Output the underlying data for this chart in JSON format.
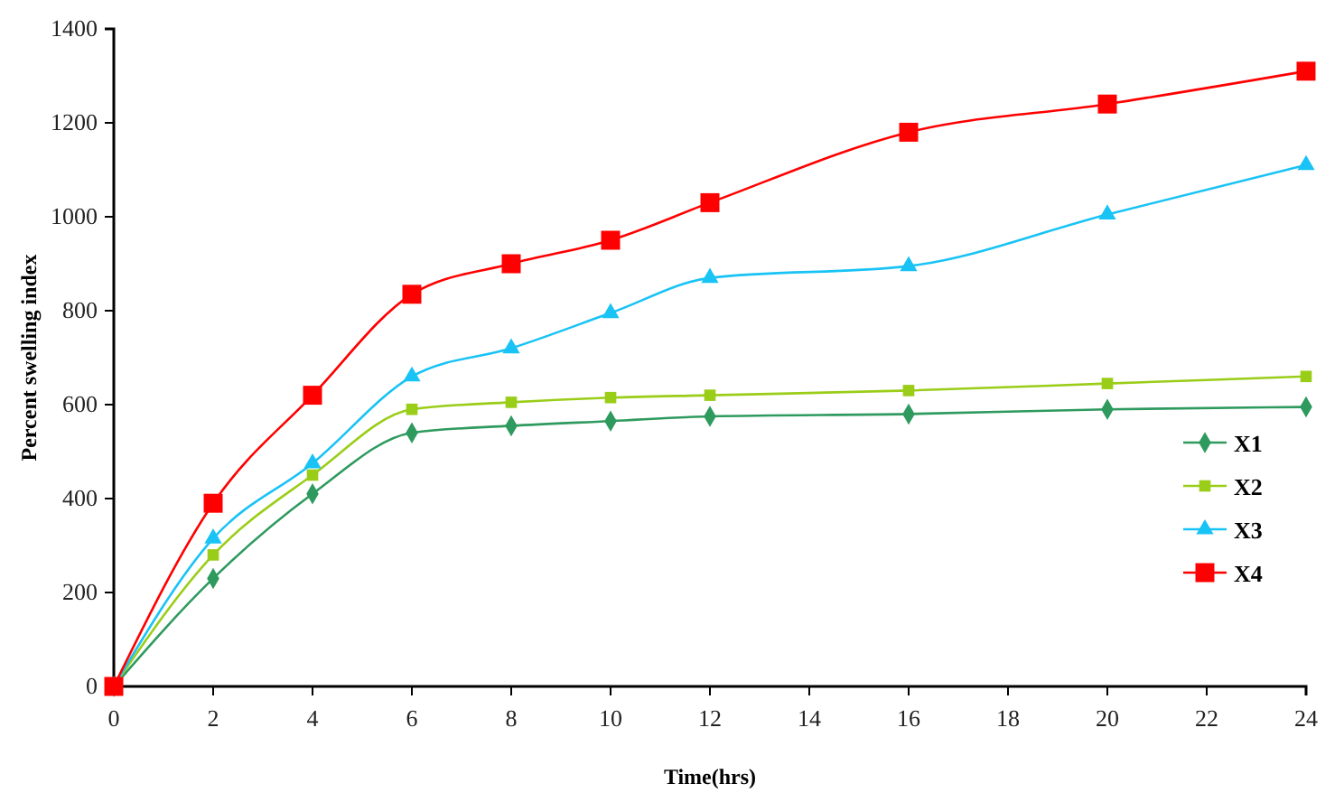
{
  "chart_data": {
    "type": "line",
    "xlabel": "Time(hrs)",
    "ylabel": "Percent swelling index",
    "x": [
      0,
      2,
      4,
      6,
      8,
      10,
      12,
      16,
      20,
      24
    ],
    "xlim": [
      0,
      24
    ],
    "xticks": [
      0,
      2,
      4,
      6,
      8,
      10,
      12,
      14,
      16,
      18,
      20,
      22,
      24
    ],
    "ylim": [
      0,
      1400
    ],
    "yticks": [
      0,
      200,
      400,
      600,
      800,
      1000,
      1200,
      1400
    ],
    "grid": false,
    "legend": "right",
    "line_style": "solid",
    "series": [
      {
        "name": "X1",
        "color": "#2e9a5e",
        "marker": "diamond",
        "values": [
          0,
          230,
          410,
          540,
          555,
          565,
          575,
          580,
          590,
          595
        ]
      },
      {
        "name": "X2",
        "color": "#9acd18",
        "marker": "square",
        "values": [
          0,
          280,
          450,
          590,
          605,
          615,
          620,
          630,
          645,
          660
        ]
      },
      {
        "name": "X3",
        "color": "#19c3f5",
        "marker": "triangle",
        "values": [
          0,
          315,
          475,
          660,
          720,
          795,
          870,
          895,
          1005,
          1110
        ]
      },
      {
        "name": "X4",
        "color": "#ff0000",
        "marker": "square",
        "values": [
          0,
          390,
          620,
          835,
          900,
          950,
          1030,
          1180,
          1240,
          1310
        ]
      }
    ]
  }
}
